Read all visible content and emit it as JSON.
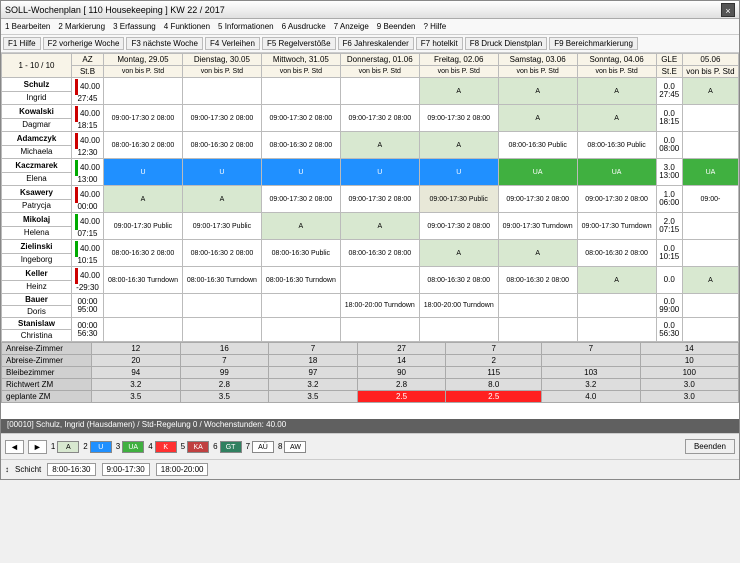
{
  "title": "SOLL-Wochenplan   [ 110 Housekeeping ]   KW 22 / 2017",
  "menu": [
    "1 Bearbeiten",
    "2 Markierung",
    "3 Erfassung",
    "4 Funktionen",
    "5 Informationen",
    "6 Ausdrucke",
    "7 Anzeige",
    "9 Beenden",
    "? Hilfe"
  ],
  "toolbar": [
    "F1 Hilfe",
    "F2 vorherige Woche",
    "F3 nächste Woche",
    "F4 Verleihen",
    "F5 Regelverstöße",
    "F6 Jahreskalender",
    "F7 hotelkit",
    "F8 Druck Dienstplan",
    "F9 Bereichmarkierung"
  ],
  "pager": "1 - 10 / 10",
  "days": [
    {
      "label": "Montag, 29.05",
      "cls": "day-hdr"
    },
    {
      "label": "Dienstag, 30.05",
      "cls": "day-hdr"
    },
    {
      "label": "Mittwoch, 31.05",
      "cls": "day-hdr"
    },
    {
      "label": "Donnerstag, 01.06",
      "cls": "day-hdr"
    },
    {
      "label": "Freitag, 02.06",
      "cls": "day-hdr"
    },
    {
      "label": "Samstag, 03.06",
      "cls": "day-hdr"
    },
    {
      "label": "Sonntag, 04.06",
      "cls": "sun-hdr"
    }
  ],
  "gle_label": "GLE",
  "gle_sub": "St.E",
  "gle_date": "05.06",
  "az_label": "AZ",
  "az_sub": "St.B",
  "sub_hdr": "von   bis    P. Std",
  "employees": [
    {
      "name": "Schulz",
      "first": "Ingrid",
      "az": "40.00\n27:45",
      "bar": "#c00",
      "cells": [
        {
          "t": ""
        },
        {
          "t": ""
        },
        {
          "t": ""
        },
        {
          "t": ""
        },
        {
          "t": "A",
          "c": "a"
        },
        {
          "t": "A",
          "c": "a"
        },
        {
          "t": "A",
          "c": "a"
        }
      ],
      "gle": "0.0\n27:45",
      "ext": "A"
    },
    {
      "name": "Kowalski",
      "first": "Dagmar",
      "az": "40.00\n18:15",
      "bar": "#c00",
      "cells": [
        {
          "t": "09:00-17:30 2 08:00"
        },
        {
          "t": "09:00-17:30 2 08:00"
        },
        {
          "t": "09:00-17:30 2 08:00"
        },
        {
          "t": "09:00-17:30 2 08:00"
        },
        {
          "t": "09:00-17:30 2 08:00"
        },
        {
          "t": "A",
          "c": "a"
        },
        {
          "t": "A",
          "c": "a"
        }
      ],
      "gle": "0.0\n18:15",
      "ext": ""
    },
    {
      "name": "Adamczyk",
      "first": "Michaela",
      "az": "40.00\n12:30",
      "bar": "#c00",
      "cells": [
        {
          "t": "08:00-16:30 2 08:00"
        },
        {
          "t": "08:00-16:30 2 08:00"
        },
        {
          "t": "08:00-16:30 2 08:00"
        },
        {
          "t": "A",
          "c": "a"
        },
        {
          "t": "A",
          "c": "a"
        },
        {
          "t": "08:00-16:30 Public"
        },
        {
          "t": "08:00-16:30 Public"
        }
      ],
      "gle": "0.0\n08:00",
      "ext": ""
    },
    {
      "name": "Kaczmarek",
      "first": "Elena",
      "az": "40.00\n13:00",
      "bar": "#0a0",
      "cells": [
        {
          "t": "U",
          "c": "u"
        },
        {
          "t": "U",
          "c": "u"
        },
        {
          "t": "U",
          "c": "u"
        },
        {
          "t": "U",
          "c": "u"
        },
        {
          "t": "U",
          "c": "u"
        },
        {
          "t": "UA",
          "c": "ua"
        },
        {
          "t": "UA",
          "c": "ua"
        }
      ],
      "gle": "3.0\n13:00",
      "ext": "UA"
    },
    {
      "name": "Ksawery",
      "first": "Patrycja",
      "az": "40.00\n00:00",
      "bar": "#c00",
      "cells": [
        {
          "t": "A",
          "c": "a"
        },
        {
          "t": "A",
          "c": "a"
        },
        {
          "t": "09:00-17:30 2 08:00"
        },
        {
          "t": "09:00-17:30 2 08:00"
        },
        {
          "t": "09:00-17:30 Public",
          "c": "pub"
        },
        {
          "t": "09:00-17:30 2 08:00"
        },
        {
          "t": "09:00-17:30 2 08:00"
        }
      ],
      "gle": "1.0\n06:00",
      "ext": "09:00-"
    },
    {
      "name": "Mikolaj",
      "first": "Helena",
      "az": "40.00\n07:15",
      "bar": "#0a0",
      "cells": [
        {
          "t": "09:00-17:30 Public"
        },
        {
          "t": "09:00-17:30 Public"
        },
        {
          "t": "A",
          "c": "a"
        },
        {
          "t": "A",
          "c": "a"
        },
        {
          "t": "09:00-17:30 2 08:00"
        },
        {
          "t": "09:00-17:30 Turndown"
        },
        {
          "t": "09:00-17:30 Turndown"
        }
      ],
      "gle": "2.0\n07:15",
      "ext": ""
    },
    {
      "name": "Zielinski",
      "first": "Ingeborg",
      "az": "40.00\n10:15",
      "bar": "#0a0",
      "cells": [
        {
          "t": "08:00-16:30 2 08:00"
        },
        {
          "t": "08:00-16:30 2 08:00"
        },
        {
          "t": "08:00-16:30 Public"
        },
        {
          "t": "08:00-16:30 2 08:00"
        },
        {
          "t": "A",
          "c": "a"
        },
        {
          "t": "A",
          "c": "a"
        },
        {
          "t": "08:00-16:30 2 08:00"
        }
      ],
      "gle": "0.0\n10:15",
      "ext": ""
    },
    {
      "name": "Keller",
      "first": "Heinz",
      "az": "40.00\n-29:30",
      "bar": "#c00",
      "cells": [
        {
          "t": "08:00-16:30 Turndown"
        },
        {
          "t": "08:00-16:30 Turndown"
        },
        {
          "t": "08:00-16:30 Turndown"
        },
        {
          "t": ""
        },
        {
          "t": "08:00-16:30 2 08:00"
        },
        {
          "t": "08:00-16:30 2 08:00"
        },
        {
          "t": "A",
          "c": "a"
        }
      ],
      "gle": "0.0",
      "ext": "A"
    },
    {
      "name": "Bauer",
      "first": "Doris",
      "az": "00:00\n95:00",
      "bar": "",
      "cells": [
        {
          "t": ""
        },
        {
          "t": ""
        },
        {
          "t": ""
        },
        {
          "t": "18:00-20:00 Turndown"
        },
        {
          "t": "18:00-20:00 Turndown"
        },
        {
          "t": ""
        },
        {
          "t": ""
        }
      ],
      "gle": "0.0\n99:00",
      "ext": ""
    },
    {
      "name": "Stanislaw",
      "first": "Christina",
      "az": "00:00\n56:30",
      "bar": "",
      "cells": [
        {
          "t": ""
        },
        {
          "t": ""
        },
        {
          "t": ""
        },
        {
          "t": ""
        },
        {
          "t": ""
        },
        {
          "t": ""
        },
        {
          "t": ""
        }
      ],
      "gle": "0.0\n56:30",
      "ext": ""
    }
  ],
  "stats": [
    {
      "label": "Anreise-Zimmer",
      "vals": [
        "12",
        "16",
        "7",
        "27",
        "7",
        "7",
        "14"
      ]
    },
    {
      "label": "Abreise-Zimmer",
      "vals": [
        "20",
        "7",
        "18",
        "14",
        "2",
        "",
        "10"
      ]
    },
    {
      "label": "Bleibezimmer",
      "vals": [
        "94",
        "99",
        "97",
        "90",
        "115",
        "103",
        "100"
      ]
    },
    {
      "label": "Richtwert ZM",
      "vals": [
        "3.2",
        "2.8",
        "3.2",
        "2.8",
        "8.0",
        "3.2",
        "3.0"
      ]
    },
    {
      "label": "geplante ZM",
      "vals": [
        "3.5",
        "3.5",
        "3.5",
        "2.5",
        "2.5",
        "4.0",
        "3.0"
      ],
      "red": [
        3,
        4
      ]
    }
  ],
  "status": "[00010] Schulz, Ingrid (Hausdamen) / Std-Regelung 0 / Wochenstunden: 40.00",
  "legend": [
    {
      "n": "1",
      "t": "A",
      "bg": "#d8e8d0"
    },
    {
      "n": "2",
      "t": "U",
      "bg": "#2090ff",
      "fg": "#fff"
    },
    {
      "n": "3",
      "t": "UA",
      "bg": "#40b040",
      "fg": "#fff"
    },
    {
      "n": "4",
      "t": "K",
      "bg": "#ff3030",
      "fg": "#fff"
    },
    {
      "n": "5",
      "t": "KA",
      "bg": "#c04040",
      "fg": "#fff"
    },
    {
      "n": "6",
      "t": "GT",
      "bg": "#308060",
      "fg": "#fff"
    },
    {
      "n": "7",
      "t": "AÜ",
      "bg": "#fff"
    },
    {
      "n": "8",
      "t": "AW",
      "bg": "#fff"
    }
  ],
  "shift_label": "Schicht",
  "shifts": [
    "8:00-16:30",
    "9:00-17:30",
    "18:00-20:00"
  ],
  "beenden": "Beenden"
}
